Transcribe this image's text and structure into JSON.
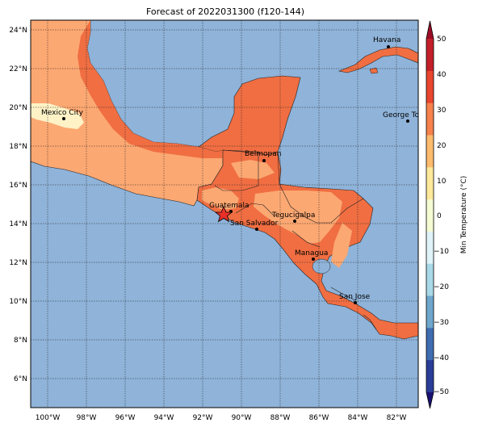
{
  "title": "Forecast of 2022031300 (f120-144)",
  "map": {
    "lon_ticks": [
      "100°W",
      "98°W",
      "96°W",
      "94°W",
      "92°W",
      "90°W",
      "88°W",
      "86°W",
      "84°W",
      "82°W"
    ],
    "lat_ticks": [
      "24°N",
      "22°N",
      "20°N",
      "18°N",
      "16°N",
      "14°N",
      "12°N",
      "10°N",
      "8°N",
      "6°N"
    ],
    "ocean_color": "#8fb3d9",
    "gridlines": true,
    "cities": [
      {
        "name": "Havana"
      },
      {
        "name": "Mexico City"
      },
      {
        "name": "George Tov"
      },
      {
        "name": "Belmopan"
      },
      {
        "name": "Guatemala"
      },
      {
        "name": "Tegucigalpa"
      },
      {
        "name": "San Salvador"
      },
      {
        "name": "Managua"
      },
      {
        "name": "San Jose"
      }
    ],
    "marker": {
      "type": "star",
      "color": "#e8302a",
      "near": "Guatemala"
    }
  },
  "colorbar": {
    "label": "Min Temperature (°C)",
    "ticks": [
      "50",
      "40",
      "30",
      "20",
      "10",
      "0",
      "−10",
      "−20",
      "−30",
      "−40",
      "−50"
    ],
    "colors": [
      "#9b0d26",
      "#c3202a",
      "#e8452f",
      "#f6814c",
      "#fdbb6e",
      "#fee99a",
      "#f5fbd2",
      "#dff3f8",
      "#a9d8e8",
      "#6ea6cc",
      "#3e6db0",
      "#2a3d98",
      "#1a1270"
    ]
  }
}
